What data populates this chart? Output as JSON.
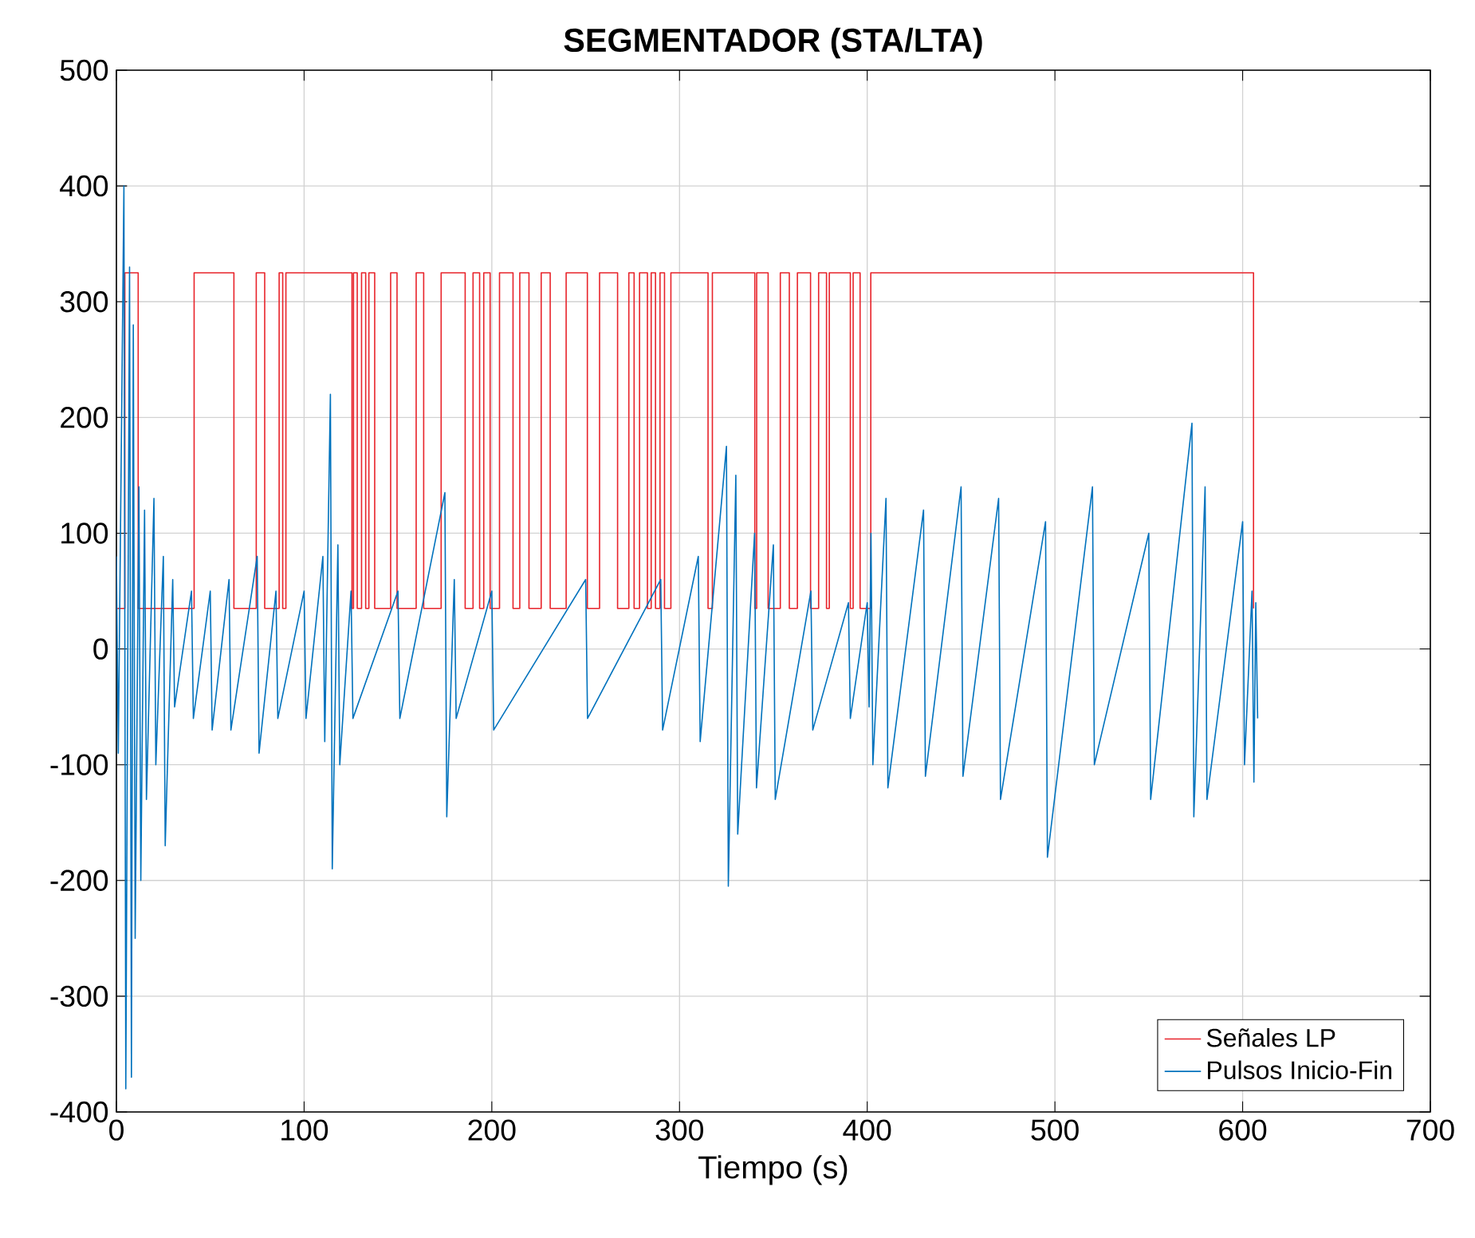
{
  "chart_data": {
    "type": "line",
    "title": "SEGMENTADOR (STA/LTA)",
    "xlabel": "Tiempo (s)",
    "xlim": [
      0,
      700
    ],
    "ylim": [
      -400,
      500
    ],
    "xticks": [
      0,
      100,
      200,
      300,
      400,
      500,
      600,
      700
    ],
    "yticks": [
      -400,
      -300,
      -200,
      -100,
      0,
      100,
      200,
      300,
      400,
      500
    ],
    "grid": true,
    "legend": "bottom right",
    "marker": "none",
    "line_style": "solid",
    "series": [
      {
        "name": "Señales LP",
        "color": "#e8232a",
        "x": [
          0,
          4.5,
          4.5,
          11.6,
          11.6,
          41.4,
          41.4,
          62.6,
          62.6,
          74.5,
          74.5,
          79,
          79,
          86.7,
          86.7,
          88.6,
          88.6,
          90.3,
          90.3,
          125.5,
          125.5,
          126.3,
          126.3,
          128.3,
          128.3,
          130.6,
          130.6,
          132.8,
          132.8,
          134.5,
          134.5,
          137.6,
          137.6,
          146.1,
          146.1,
          149.5,
          149.5,
          159.7,
          159.7,
          163.7,
          163.7,
          173,
          173,
          185.8,
          185.8,
          190,
          190,
          193.5,
          193.5,
          195.7,
          195.7,
          199.1,
          199.1,
          204.1,
          204.1,
          211.3,
          211.3,
          214.9,
          214.9,
          219.8,
          219.8,
          226.3,
          226.3,
          231.1,
          231.1,
          239.6,
          239.6,
          250.9,
          250.9,
          257.4,
          257.4,
          267,
          267,
          273,
          273,
          275.8,
          275.8,
          278.7,
          278.7,
          282.9,
          282.9,
          284.9,
          284.9,
          287.2,
          287.2,
          289.6,
          289.6,
          292,
          292,
          295.4,
          295.4,
          315.2,
          315.2,
          317.5,
          317.5,
          340.1,
          340.1,
          341.1,
          341.1,
          347.2,
          347.2,
          353.7,
          353.7,
          358.5,
          358.5,
          362.8,
          362.8,
          369.8,
          369.8,
          374.1,
          374.1,
          378.3,
          378.3,
          379.8,
          379.8,
          391,
          391,
          392.5,
          392.5,
          396.2,
          396.2,
          401.9,
          401.9,
          605.8,
          605.8
        ],
        "values": [
          35,
          35,
          325,
          325,
          35,
          35,
          325,
          325,
          35,
          35,
          325,
          325,
          35,
          35,
          325,
          325,
          35,
          35,
          325,
          325,
          35,
          35,
          325,
          325,
          35,
          35,
          325,
          325,
          35,
          35,
          325,
          325,
          35,
          35,
          325,
          325,
          35,
          35,
          325,
          325,
          35,
          35,
          325,
          325,
          35,
          35,
          325,
          325,
          35,
          35,
          325,
          325,
          35,
          35,
          325,
          325,
          35,
          35,
          325,
          325,
          35,
          35,
          325,
          325,
          35,
          35,
          325,
          325,
          35,
          35,
          325,
          325,
          35,
          35,
          325,
          325,
          35,
          35,
          325,
          325,
          35,
          35,
          325,
          325,
          35,
          35,
          325,
          325,
          35,
          35,
          325,
          325,
          35,
          35,
          325,
          325,
          35,
          35,
          325,
          325,
          35,
          35,
          325,
          325,
          35,
          35,
          325,
          325,
          35,
          35,
          325,
          325,
          35,
          35,
          325,
          325,
          35,
          35,
          325,
          325,
          35,
          35,
          325,
          325,
          35
        ]
      },
      {
        "name": "Pulsos Inicio-Fin",
        "color": "#0072bd",
        "x": [
          0,
          1,
          4,
          5,
          7,
          8,
          9,
          10,
          12,
          13,
          15,
          16,
          20,
          21,
          25,
          26,
          30,
          31,
          40,
          41,
          50,
          51,
          60,
          61,
          75,
          76,
          85,
          86,
          100,
          101,
          110,
          111,
          114,
          115,
          118,
          119,
          125,
          126,
          150,
          151,
          175,
          176,
          180,
          181,
          200,
          201,
          250,
          251,
          290,
          291,
          310,
          311,
          325,
          326,
          330,
          331,
          340,
          341,
          350,
          351,
          370,
          371,
          390,
          391,
          400,
          401,
          402,
          403,
          410,
          411,
          430,
          431,
          450,
          451,
          470,
          471,
          495,
          496,
          520,
          521,
          550,
          551,
          573,
          574,
          580,
          581,
          600,
          601,
          605,
          606,
          607,
          608
        ],
        "values": [
          80,
          -90,
          400,
          -380,
          330,
          -370,
          280,
          -250,
          140,
          -200,
          120,
          -130,
          130,
          -100,
          80,
          -170,
          60,
          -50,
          50,
          -60,
          50,
          -70,
          60,
          -70,
          80,
          -90,
          50,
          -60,
          50,
          -60,
          80,
          -80,
          220,
          -190,
          90,
          -100,
          50,
          -60,
          50,
          -60,
          135,
          -145,
          60,
          -60,
          50,
          -70,
          60,
          -60,
          60,
          -70,
          80,
          -80,
          175,
          -205,
          150,
          -160,
          100,
          -120,
          90,
          -130,
          50,
          -70,
          40,
          -60,
          40,
          -50,
          100,
          -100,
          130,
          -120,
          120,
          -110,
          140,
          -110,
          130,
          -130,
          110,
          -180,
          140,
          -100,
          100,
          -130,
          195,
          -145,
          140,
          -130,
          110,
          -100,
          50,
          -115,
          40,
          -60
        ]
      }
    ]
  }
}
